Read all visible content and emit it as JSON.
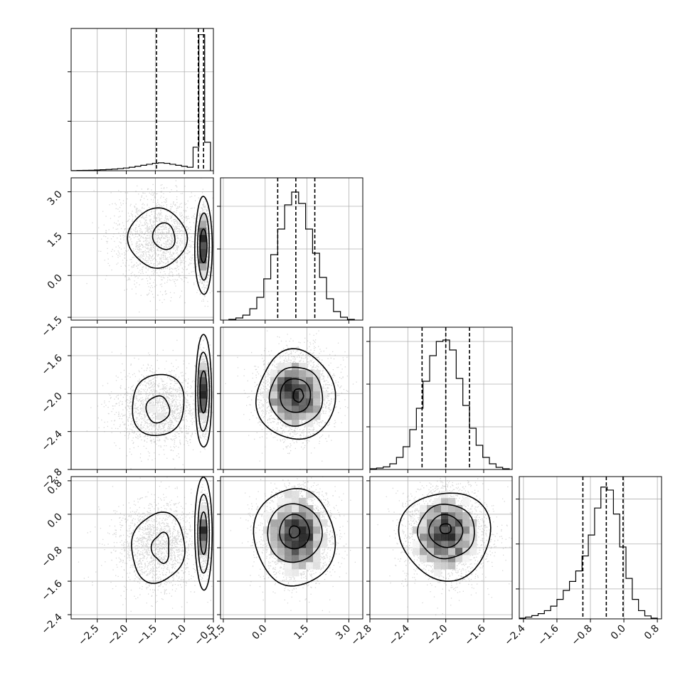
{
  "figure": {
    "variables": 4,
    "colors": {
      "line": "#000000",
      "grid": "#b0b0b0",
      "scatter": "#8c8c8c",
      "background": "#ffffff"
    }
  },
  "chart_data": {
    "type": "corner",
    "grid": true,
    "variables": [
      {
        "index": 0,
        "range": [
          -2.95,
          -0.5
        ],
        "ticks": [
          -2.5,
          -2.0,
          -1.5,
          -1.0,
          -0.5
        ],
        "tick_labels": [
          "−2.5",
          "−2.0",
          "−1.5",
          "−1.0",
          "−0.5"
        ],
        "quantiles": [
          -1.48,
          -0.76,
          -0.67
        ]
      },
      {
        "index": 1,
        "range": [
          -1.6,
          3.5
        ],
        "ticks": [
          -1.5,
          0.0,
          1.5,
          3.0
        ],
        "tick_labels": [
          "−1.5",
          "0.0",
          "1.5",
          "3.0"
        ],
        "quantiles": [
          0.45,
          1.1,
          1.78
        ]
      },
      {
        "index": 2,
        "range": [
          -2.8,
          -1.3
        ],
        "ticks": [
          -2.8,
          -2.4,
          -2.0,
          -1.6
        ],
        "tick_labels": [
          "−2.8",
          "−2.4",
          "−2.0",
          "−1.6"
        ],
        "quantiles": [
          -2.25,
          -2.0,
          -1.75
        ]
      },
      {
        "index": 3,
        "range": [
          -2.5,
          0.9
        ],
        "ticks": [
          -2.4,
          -1.6,
          -0.8,
          0.0,
          0.8
        ],
        "tick_labels": [
          "−2.4",
          "−1.6",
          "−0.8",
          "0.0",
          "0.8"
        ],
        "quantiles": [
          -0.98,
          -0.42,
          -0.02
        ]
      }
    ],
    "histograms": [
      {
        "variable": 0,
        "edges": [
          -2.95,
          -2.85,
          -2.75,
          -2.65,
          -2.55,
          -2.45,
          -2.35,
          -2.25,
          -2.15,
          -2.05,
          -1.95,
          -1.85,
          -1.75,
          -1.65,
          -1.55,
          -1.45,
          -1.35,
          -1.25,
          -1.15,
          -1.05,
          -0.95,
          -0.85,
          -0.75,
          -0.65,
          -0.55
        ],
        "counts": [
          1,
          2,
          3,
          4,
          6,
          8,
          10,
          13,
          17,
          22,
          28,
          36,
          44,
          52,
          60,
          64,
          60,
          52,
          44,
          36,
          28,
          190,
          1100,
          230
        ],
        "ymax": 1150,
        "yticks": [
          400,
          800
        ]
      },
      {
        "variable": 1,
        "edges": [
          -1.3,
          -1.05,
          -0.8,
          -0.55,
          -0.3,
          -0.05,
          0.2,
          0.45,
          0.7,
          0.95,
          1.2,
          1.45,
          1.7,
          1.95,
          2.2,
          2.45,
          2.7,
          2.95,
          3.2
        ],
        "counts": [
          5,
          15,
          35,
          80,
          160,
          290,
          460,
          640,
          810,
          900,
          820,
          640,
          470,
          300,
          150,
          60,
          20,
          5
        ],
        "ymax": 1000,
        "yticks": [
          200,
          500,
          800
        ]
      },
      {
        "variable": 2,
        "edges": [
          -2.8,
          -2.73,
          -2.66,
          -2.59,
          -2.52,
          -2.45,
          -2.38,
          -2.31,
          -2.24,
          -2.17,
          -2.1,
          -2.03,
          -1.96,
          -1.89,
          -1.82,
          -1.75,
          -1.68,
          -1.61,
          -1.54,
          -1.47,
          -1.4,
          -1.33
        ],
        "counts": [
          5,
          10,
          18,
          40,
          85,
          160,
          280,
          430,
          620,
          800,
          900,
          910,
          840,
          640,
          450,
          290,
          170,
          85,
          40,
          15,
          5
        ],
        "ymax": 1000,
        "yticks": [
          300,
          600,
          900
        ]
      },
      {
        "variable": 3,
        "edges": [
          -2.5,
          -2.35,
          -2.2,
          -2.05,
          -1.9,
          -1.75,
          -1.6,
          -1.45,
          -1.3,
          -1.15,
          -1.0,
          -0.85,
          -0.7,
          -0.55,
          -0.4,
          -0.25,
          -0.1,
          0.05,
          0.2,
          0.35,
          0.5,
          0.65,
          0.8
        ],
        "counts": [
          5,
          12,
          22,
          35,
          55,
          85,
          130,
          190,
          250,
          320,
          420,
          560,
          740,
          880,
          860,
          700,
          480,
          270,
          130,
          55,
          20,
          5
        ],
        "ymax": 950,
        "yticks": [
          200,
          500,
          800
        ]
      }
    ],
    "pairs": [
      {
        "x": 0,
        "y": 1,
        "clusters": [
          {
            "cx": -1.45,
            "cy": 1.3,
            "sx": 0.38,
            "sy": 0.85,
            "n": 1700
          },
          {
            "cx": -0.67,
            "cy": 1.05,
            "sx": 0.05,
            "sy": 0.7,
            "n": 1100
          }
        ]
      },
      {
        "x": 0,
        "y": 2,
        "clusters": [
          {
            "cx": -1.45,
            "cy": -2.15,
            "sx": 0.38,
            "sy": 0.2,
            "n": 1700
          },
          {
            "cx": -0.67,
            "cy": -1.98,
            "sx": 0.05,
            "sy": 0.2,
            "n": 1100
          }
        ]
      },
      {
        "x": 0,
        "y": 3,
        "clusters": [
          {
            "cx": -1.45,
            "cy": -0.75,
            "sx": 0.38,
            "sy": 0.55,
            "n": 1700
          },
          {
            "cx": -0.67,
            "cy": -0.45,
            "sx": 0.05,
            "sy": 0.4,
            "n": 1100
          }
        ]
      },
      {
        "x": 1,
        "y": 2,
        "clusters": [
          {
            "cx": 1.1,
            "cy": -2.0,
            "sx": 0.65,
            "sy": 0.22,
            "n": 3000
          }
        ]
      },
      {
        "x": 1,
        "y": 3,
        "clusters": [
          {
            "cx": 1.1,
            "cy": -0.45,
            "sx": 0.65,
            "sy": 0.55,
            "n": 3000
          }
        ]
      },
      {
        "x": 2,
        "y": 3,
        "clusters": [
          {
            "cx": -2.0,
            "cy": -0.45,
            "sx": 0.22,
            "sy": 0.55,
            "n": 3000
          }
        ]
      }
    ],
    "contours": [
      {
        "x": 0,
        "y": 1,
        "levels": [
          {
            "cx": -1.45,
            "cy": 1.3,
            "rx": 0.5,
            "ry": 1.05,
            "wobble": 0.08
          },
          {
            "cx": -1.35,
            "cy": 1.4,
            "rx": 0.2,
            "ry": 0.45,
            "wobble": 0.12
          },
          {
            "cx": -0.67,
            "cy": 1.05,
            "rx": 0.15,
            "ry": 1.75,
            "wobble": 0.03
          },
          {
            "cx": -0.67,
            "cy": 1.05,
            "rx": 0.1,
            "ry": 1.2,
            "wobble": 0.03
          },
          {
            "cx": -0.67,
            "cy": 1.05,
            "rx": 0.06,
            "ry": 0.6,
            "wobble": 0.02
          }
        ]
      },
      {
        "x": 0,
        "y": 2,
        "levels": [
          {
            "cx": -1.45,
            "cy": -2.12,
            "rx": 0.47,
            "ry": 0.32,
            "wobble": 0.08
          },
          {
            "cx": -1.45,
            "cy": -2.16,
            "rx": 0.2,
            "ry": 0.14,
            "wobble": 0.1
          },
          {
            "cx": -0.67,
            "cy": -1.98,
            "rx": 0.14,
            "ry": 0.6,
            "wobble": 0.03
          },
          {
            "cx": -0.67,
            "cy": -1.98,
            "rx": 0.1,
            "ry": 0.42,
            "wobble": 0.03
          },
          {
            "cx": -0.67,
            "cy": -1.98,
            "rx": 0.06,
            "ry": 0.22,
            "wobble": 0.02
          }
        ]
      },
      {
        "x": 0,
        "y": 3,
        "levels": [
          {
            "cx": -1.45,
            "cy": -0.8,
            "rx": 0.48,
            "ry": 0.8,
            "wobble": 0.1
          },
          {
            "cx": -1.4,
            "cy": -0.8,
            "rx": 0.15,
            "ry": 0.35,
            "wobble": 0.15
          },
          {
            "cx": -0.67,
            "cy": -0.45,
            "rx": 0.15,
            "ry": 1.35,
            "wobble": 0.03
          },
          {
            "cx": -0.67,
            "cy": -0.45,
            "rx": 0.1,
            "ry": 0.95,
            "wobble": 0.03
          },
          {
            "cx": -0.67,
            "cy": -0.45,
            "rx": 0.06,
            "ry": 0.5,
            "wobble": 0.02
          }
        ]
      },
      {
        "x": 1,
        "y": 2,
        "levels": [
          {
            "cx": 1.1,
            "cy": -2.02,
            "rx": 1.4,
            "ry": 0.47,
            "wobble": 0.06
          },
          {
            "cx": 1.1,
            "cy": -2.02,
            "rx": 0.95,
            "ry": 0.31,
            "wobble": 0.05
          },
          {
            "cx": 1.1,
            "cy": -2.02,
            "rx": 0.55,
            "ry": 0.18,
            "wobble": 0.05
          },
          {
            "cx": 1.2,
            "cy": -2.02,
            "rx": 0.18,
            "ry": 0.07,
            "wobble": 0.1
          }
        ]
      },
      {
        "x": 1,
        "y": 3,
        "levels": [
          {
            "cx": 1.05,
            "cy": -0.55,
            "rx": 1.4,
            "ry": 1.2,
            "wobble": 0.07
          },
          {
            "cx": 1.05,
            "cy": -0.45,
            "rx": 0.95,
            "ry": 0.72,
            "wobble": 0.05
          },
          {
            "cx": 1.05,
            "cy": -0.42,
            "rx": 0.55,
            "ry": 0.4,
            "wobble": 0.05
          },
          {
            "cx": 1.05,
            "cy": -0.42,
            "rx": 0.18,
            "ry": 0.15,
            "wobble": 0.1
          }
        ]
      },
      {
        "x": 2,
        "y": 3,
        "levels": [
          {
            "cx": -2.0,
            "cy": -0.5,
            "rx": 0.48,
            "ry": 1.05,
            "wobble": 0.07
          },
          {
            "cx": -2.0,
            "cy": -0.42,
            "rx": 0.3,
            "ry": 0.65,
            "wobble": 0.05
          },
          {
            "cx": -2.0,
            "cy": -0.4,
            "rx": 0.18,
            "ry": 0.38,
            "wobble": 0.05
          },
          {
            "cx": -2.0,
            "cy": -0.35,
            "rx": 0.06,
            "ry": 0.12,
            "wobble": 0.1
          }
        ]
      }
    ]
  }
}
